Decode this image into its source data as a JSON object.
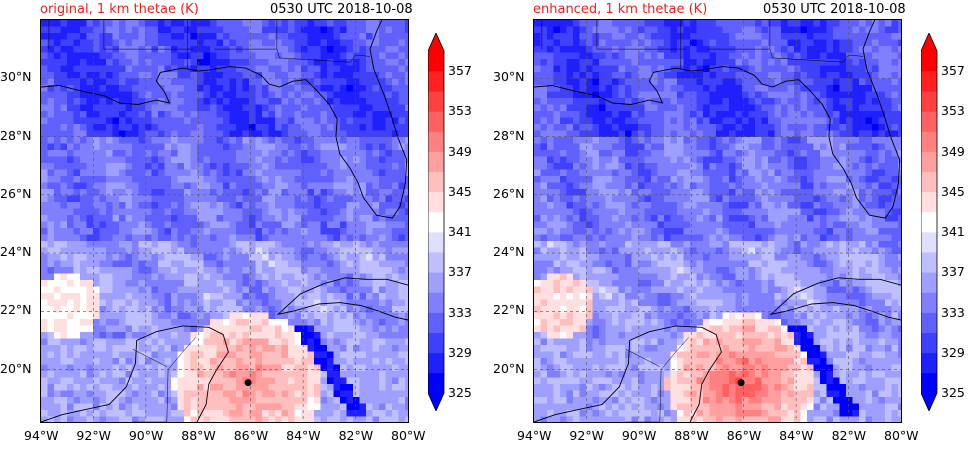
{
  "panels": [
    {
      "title": "original, 1 km thetae (K)",
      "time": "0530 UTC 2018-10-08"
    },
    {
      "title": "enhanced, 1 km thetae (K)",
      "time": "0530 UTC 2018-10-08"
    }
  ],
  "axes": {
    "lon_ticks": [
      "94°W",
      "92°W",
      "90°W",
      "88°W",
      "86°W",
      "84°W",
      "82°W",
      "80°W"
    ],
    "lat_ticks": [
      "30°N",
      "28°N",
      "26°N",
      "24°N",
      "22°N",
      "20°N"
    ],
    "lon_range": [
      -94,
      -80
    ],
    "lat_range": [
      18.2,
      32.0
    ]
  },
  "colorbar": {
    "labels": [
      "357",
      "353",
      "349",
      "345",
      "341",
      "337",
      "333",
      "329",
      "325"
    ],
    "min": 325,
    "max": 359,
    "step": 2,
    "colors": {
      "low": "#0000ff",
      "mid": "#ffffff",
      "high": "#ff0000"
    }
  },
  "marker": {
    "lon": -86.1,
    "lat": 19.55
  }
}
